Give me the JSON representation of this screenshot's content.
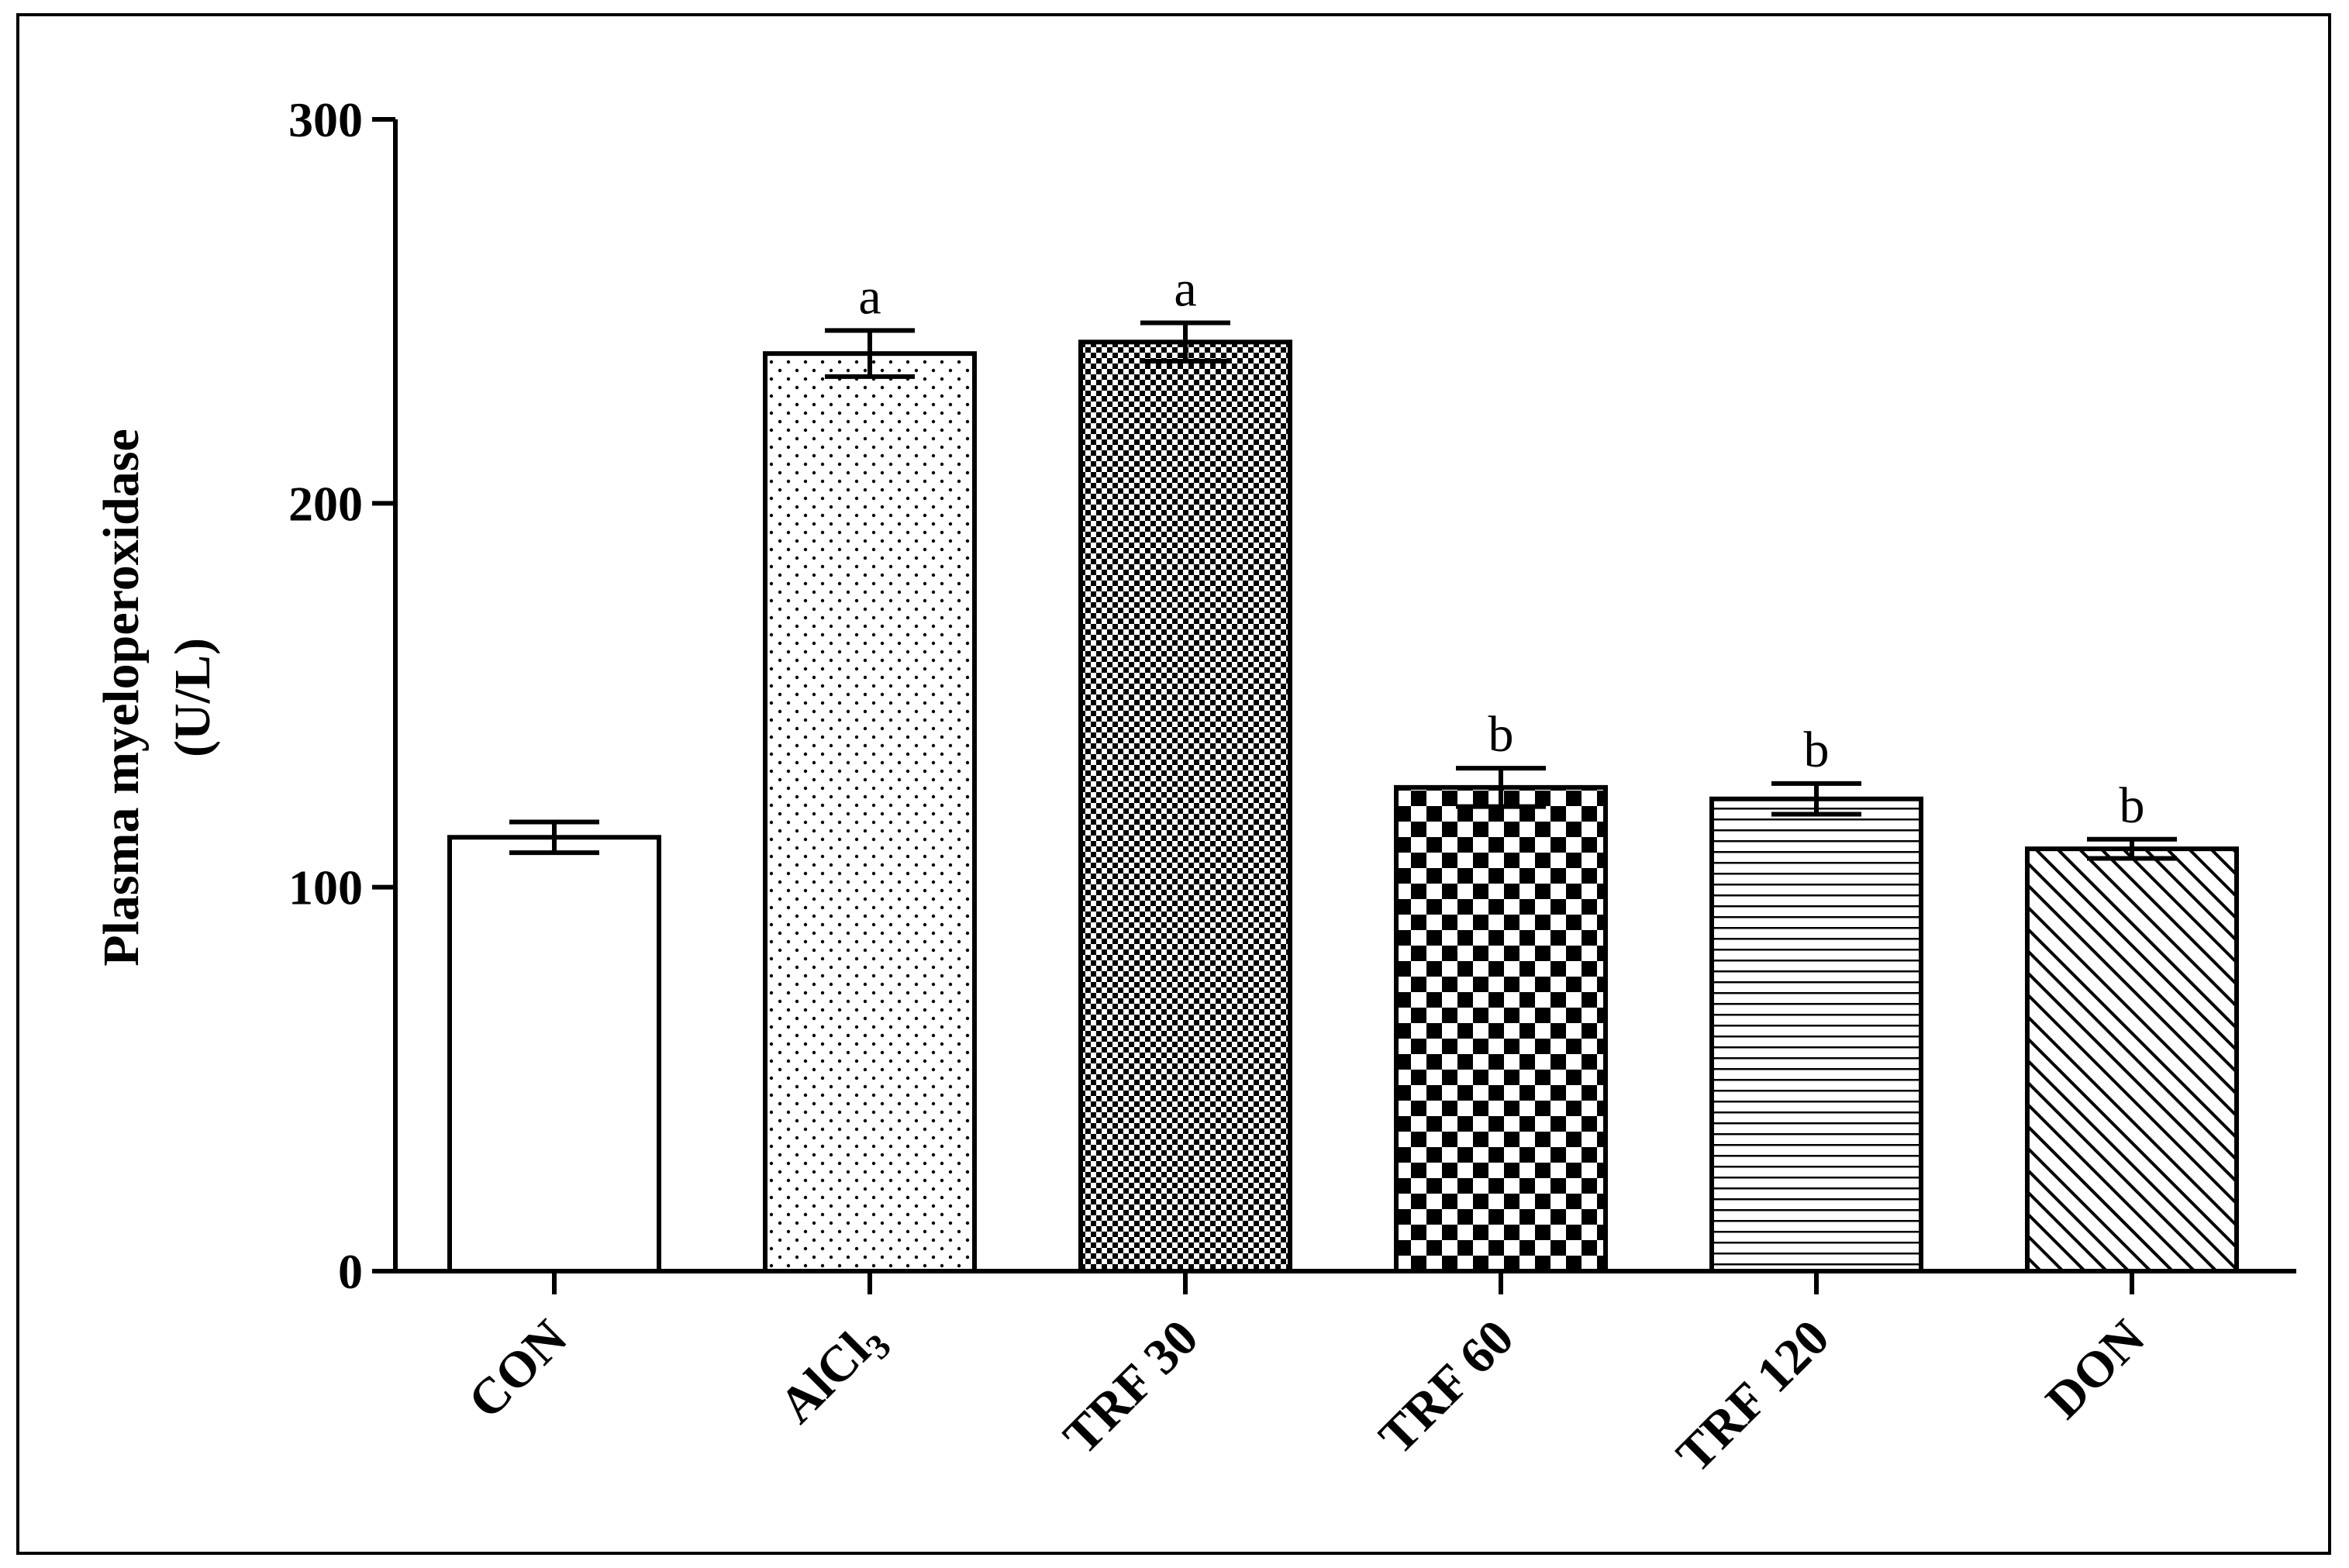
{
  "chart_data": {
    "type": "bar",
    "title": "",
    "xlabel": "",
    "ylabel_line1": "Plasma myeloperoxidase",
    "ylabel_line2": "(U/L)",
    "ylim": [
      0,
      300
    ],
    "yticks": [
      0,
      100,
      200,
      300
    ],
    "categories": [
      "CON",
      "AlCl",
      "TRF 30",
      "TRF 60",
      "TRF 120",
      "DON"
    ],
    "category_subscripts": [
      "",
      "3",
      "",
      "",
      "",
      ""
    ],
    "values": [
      113,
      239,
      242,
      126,
      123,
      110
    ],
    "errors": [
      4,
      6,
      5,
      5,
      4,
      2.5
    ],
    "significance": [
      "",
      "a",
      "a",
      "b",
      "b",
      "b"
    ],
    "patterns": [
      "none",
      "dots",
      "fine-checker",
      "checker",
      "horizontal-lines",
      "diagonal-lines"
    ],
    "grid": false,
    "colors": {
      "stroke": "#000000",
      "fill": "#ffffff"
    }
  }
}
